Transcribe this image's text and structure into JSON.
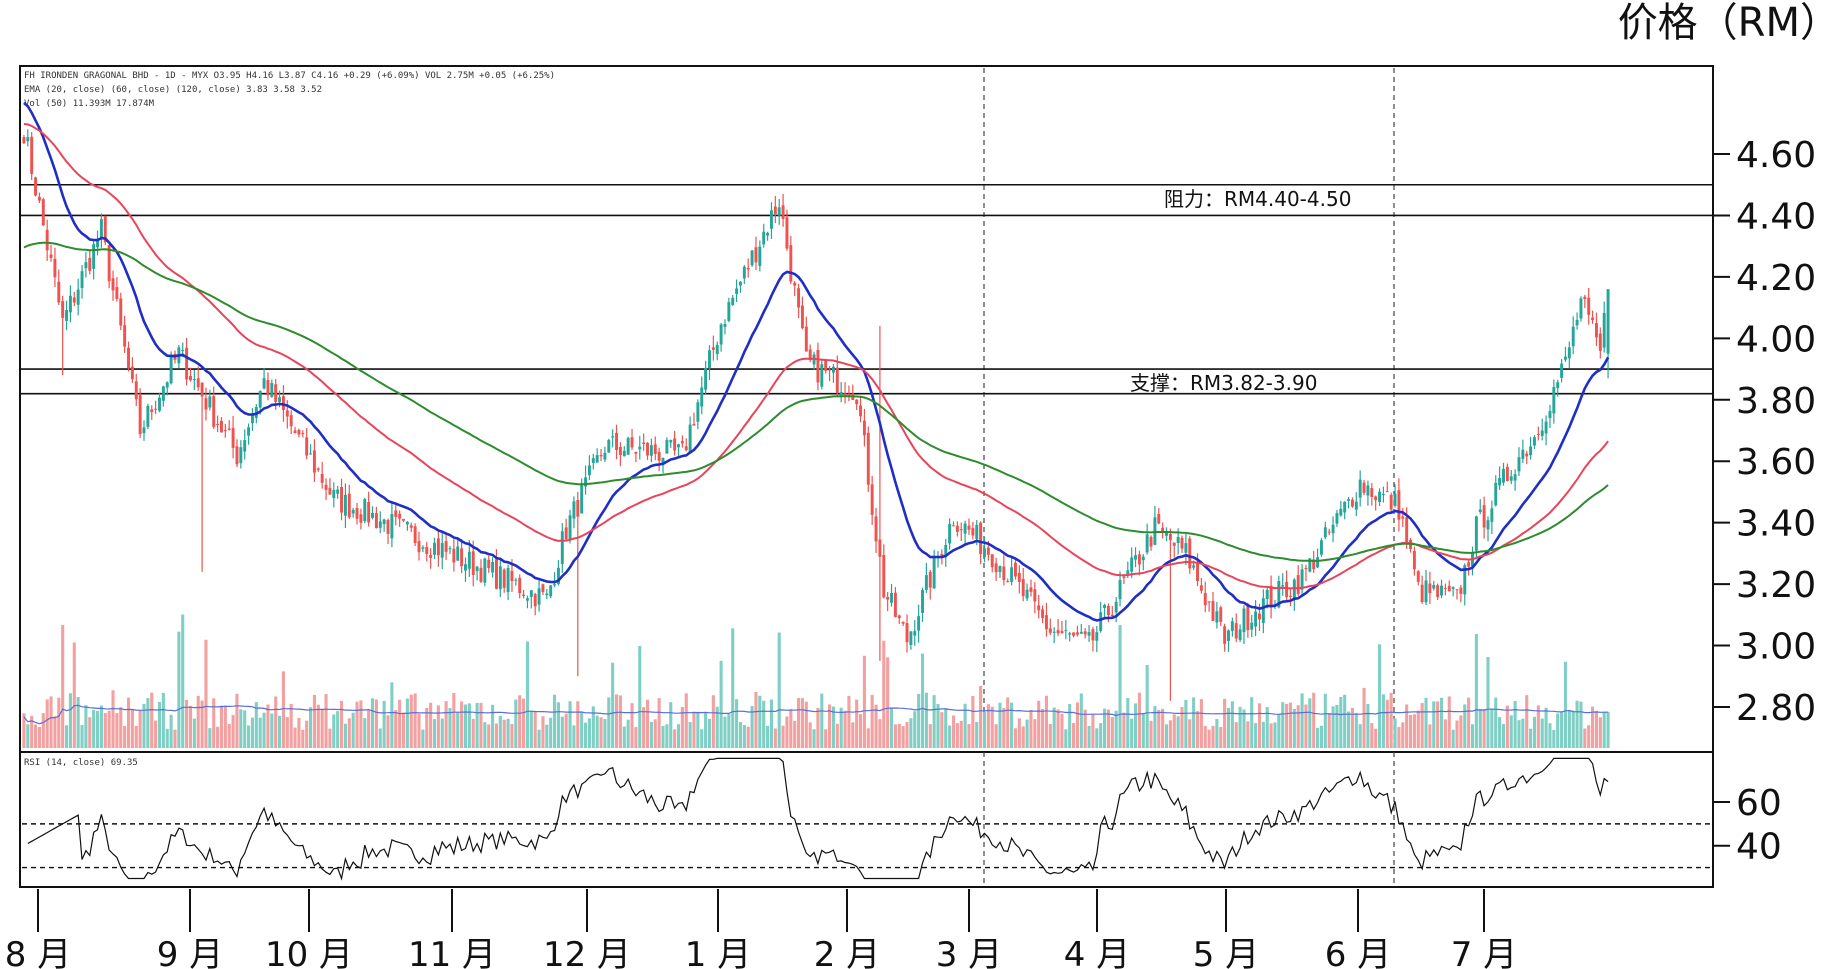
{
  "header": {
    "unit_label": "价格（RM）",
    "legend_line1": "FH IRONDEN GRAGONAL BHD - 1D - MYX O3.95 H4.16 L3.87 C4.16 +0.29 (+6.09%) VOL 2.75M +0.05 (+6.25%)",
    "legend_line2": "EMA (20, close) (60, close) (120, close)  3.83  3.58  3.52",
    "legend_line3": "Vol (50)  11.393M  17.874M",
    "rsi_label": "RSI (14, close)  69.35"
  },
  "annotations": {
    "resistance": "阻力：RM4.40-4.50",
    "support": "支撑：RM3.82-3.90"
  },
  "colors": {
    "up": "#26a69a",
    "down": "#ef5350",
    "ema20": "#1f2fc4",
    "ema60": "#e8455a",
    "ema120": "#2e8b2e",
    "volume_up": "#7fcfc5",
    "volume_down": "#f2a0a0",
    "volume_ma": "#5a6fd6",
    "rsi": "#111111"
  },
  "chart_data": {
    "type": "candlestick",
    "title": "",
    "ylabel": "价格（RM）",
    "y_ticks": [
      "4.60",
      "4.40",
      "4.20",
      "4.00",
      "3.80",
      "3.60",
      "3.40",
      "3.20",
      "3.00",
      "2.80"
    ],
    "y_tick_values": [
      4.6,
      4.4,
      4.2,
      4.0,
      3.8,
      3.6,
      3.4,
      3.2,
      3.0,
      2.8
    ],
    "ylim": [
      2.66,
      4.88
    ],
    "x_ticks": [
      "8 月",
      "9 月",
      "10 月",
      "11 月",
      "12 月",
      "1 月",
      "2 月",
      "3 月",
      "4 月",
      "5 月",
      "6 月",
      "7 月"
    ],
    "rsi_ticks": [
      "60",
      "40"
    ],
    "rsi_tick_values": [
      60,
      40
    ],
    "rsi_ylim": [
      22,
      82
    ],
    "rsi_levels": [
      50,
      30
    ],
    "horizontal_levels": [
      4.5,
      4.4,
      3.9,
      3.82
    ],
    "anchors": [
      [
        0,
        4.68
      ],
      [
        10,
        4.05
      ],
      [
        20,
        4.35
      ],
      [
        30,
        3.7
      ],
      [
        40,
        3.95
      ],
      [
        55,
        3.62
      ],
      [
        62,
        3.86
      ],
      [
        80,
        3.48
      ],
      [
        110,
        3.3
      ],
      [
        135,
        3.15
      ],
      [
        140,
        3.38
      ],
      [
        150,
        3.65
      ],
      [
        170,
        3.62
      ],
      [
        180,
        4.05
      ],
      [
        195,
        4.45
      ],
      [
        202,
        3.92
      ],
      [
        215,
        3.83
      ],
      [
        222,
        3.18
      ],
      [
        228,
        3.02
      ],
      [
        240,
        3.42
      ],
      [
        250,
        3.3
      ],
      [
        265,
        3.05
      ],
      [
        275,
        3.0
      ],
      [
        292,
        3.38
      ],
      [
        300,
        3.3
      ],
      [
        310,
        3.02
      ],
      [
        318,
        3.12
      ],
      [
        330,
        3.22
      ],
      [
        345,
        3.53
      ],
      [
        355,
        3.45
      ],
      [
        360,
        3.18
      ],
      [
        370,
        3.15
      ],
      [
        375,
        3.38
      ],
      [
        385,
        3.6
      ],
      [
        390,
        3.68
      ],
      [
        398,
        3.92
      ],
      [
        402,
        4.12
      ],
      [
        407,
        3.95
      ],
      [
        409,
        4.16
      ]
    ],
    "spikes": [
      {
        "i": 196,
        "hi": 4.47,
        "lo": null
      },
      {
        "i": 221,
        "hi": null,
        "lo": 2.95
      },
      {
        "i": 221,
        "hi": 4.04,
        "lo": null
      },
      {
        "i": 10,
        "hi": null,
        "lo": 3.88
      },
      {
        "i": 46,
        "hi": null,
        "lo": 3.24
      },
      {
        "i": 143,
        "hi": null,
        "lo": 2.9
      },
      {
        "i": 296,
        "hi": null,
        "lo": 2.82
      }
    ],
    "series": [
      {
        "name": "EMA 20"
      },
      {
        "name": "EMA 60"
      },
      {
        "name": "EMA 120"
      }
    ],
    "legend_values": [
      "3.83",
      "3.58",
      "3.52"
    ],
    "last": {
      "open": 3.95,
      "high": 4.16,
      "low": 3.87,
      "close": 4.16
    },
    "rsi_last": 69.35
  }
}
